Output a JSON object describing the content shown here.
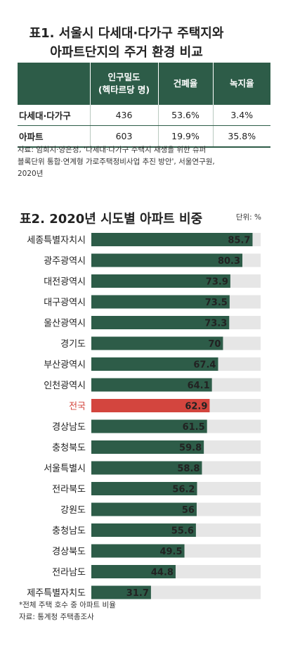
{
  "table1": {
    "title_line1": "표1. 서울시 다세대·다가구 주택지와",
    "title_line2": "아파트단지의 주거 환경 비교",
    "headers": [
      "",
      "인구밀도",
      "(헥타르당 명)",
      "건폐율",
      "녹지율"
    ],
    "rows": [
      {
        "label": "다세대·다가구",
        "density": "436",
        "coverage": "53.6%",
        "green": "3.4%"
      },
      {
        "label": "아파트",
        "density": "603",
        "coverage": "19.9%",
        "green": "35.8%"
      }
    ],
    "source_line1": "자료: 임희지·양은정, '다세대·다가구 주택지 재생을 위한 슈퍼",
    "source_line2": "블록단위 통합·연계형 가로주택정비사업 추진 방안', 서울연구원,",
    "source_line3": "2020년"
  },
  "chart2": {
    "title": "표2. 2020년 시도별 아파트 비중",
    "unit": "단위: %",
    "footnote_line1": "*전체 주택 호수 중 아파트 비율",
    "footnote_line2": "자료: 통계청 주택총조사"
  },
  "colors": {
    "bar": "#2d5c48",
    "highlight_bar": "#d3453e",
    "highlight_label": "#d3453e",
    "track": "#e6e6e6"
  },
  "chart_data": {
    "type": "bar",
    "orientation": "horizontal",
    "title": "표2. 2020년 시도별 아파트 비중",
    "unit": "단위: %",
    "xlim": [
      0,
      90
    ],
    "categories": [
      "세종특별자치시",
      "광주광역시",
      "대전광역시",
      "대구광역시",
      "울산광역시",
      "경기도",
      "부산광역시",
      "인천광역시",
      "전국",
      "경상남도",
      "충청북도",
      "서울특별시",
      "전라북도",
      "강원도",
      "충청남도",
      "경상북도",
      "전라남도",
      "제주특별자치도"
    ],
    "values": [
      85.7,
      80.3,
      73.9,
      73.5,
      73.3,
      70,
      67.4,
      64.1,
      62.9,
      61.5,
      59.8,
      58.8,
      56.2,
      56,
      55.6,
      49.5,
      44.8,
      31.7
    ],
    "value_labels": [
      "85.7",
      "80.3",
      "73.9",
      "73.5",
      "73.3",
      "70",
      "67.4",
      "64.1",
      "62.9",
      "61.5",
      "59.8",
      "58.8",
      "56.2",
      "56",
      "55.6",
      "49.5",
      "44.8",
      "31.7"
    ],
    "highlight": "전국"
  }
}
